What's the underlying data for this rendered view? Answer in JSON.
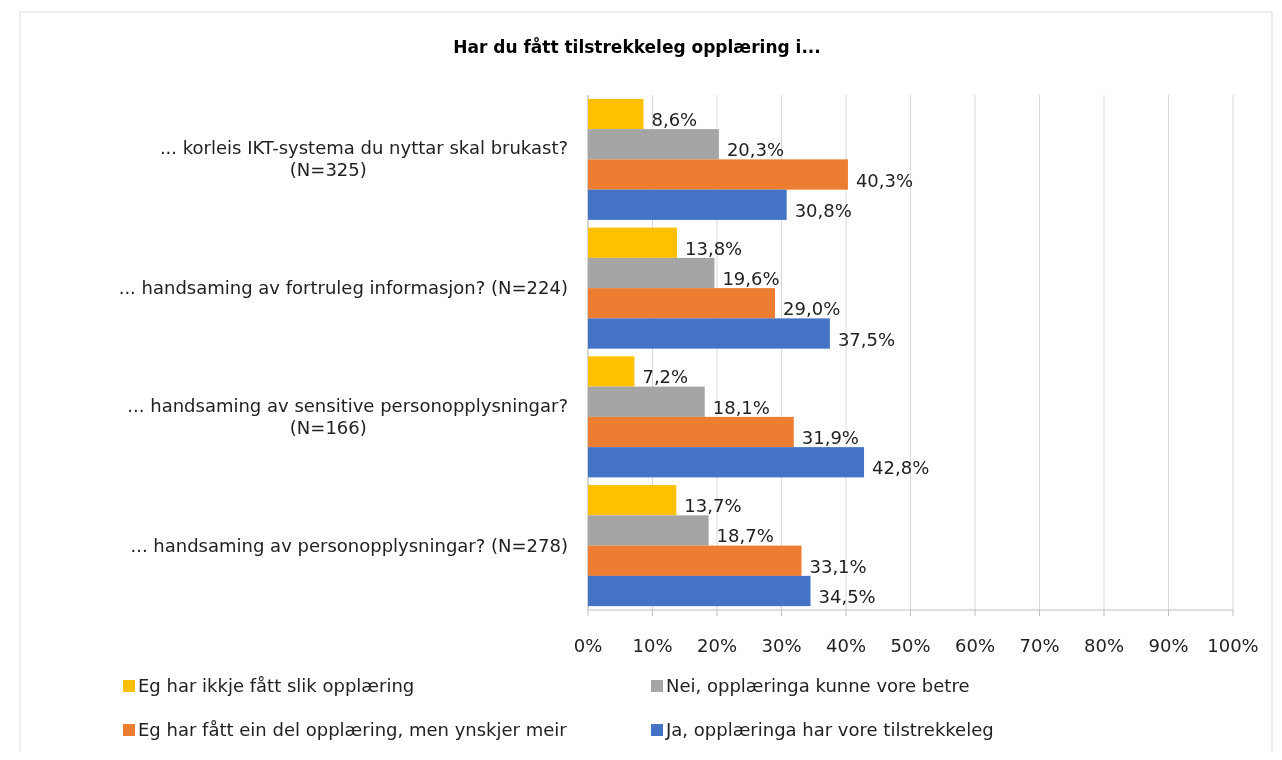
{
  "chart_data": {
    "type": "bar",
    "orientation": "horizontal",
    "title": "Har du fått tilstrekkeleg opplæring i...",
    "categories": [
      "... korleis IKT-systema du nyttar skal brukast? (N=325)",
      "... handsaming av fortruleg informasjon? (N=224)",
      "... handsaming av sensitive personopplysningar? (N=166)",
      "... handsaming av personopplysningar? (N=278)"
    ],
    "series": [
      {
        "name": "Eg har ikkje fått slik opplæring",
        "color": "#ffc000",
        "values": [
          8.6,
          13.8,
          7.2,
          13.7
        ],
        "value_labels": [
          "8,6%",
          "13,8%",
          "7,2%",
          "13,7%"
        ]
      },
      {
        "name": "Nei, opplæringa kunne vore betre",
        "color": "#a5a5a5",
        "values": [
          20.3,
          19.6,
          18.1,
          18.7
        ],
        "value_labels": [
          "20,3%",
          "19,6%",
          "18,1%",
          "18,7%"
        ]
      },
      {
        "name": "Eg har fått ein del opplæring, men ynskjer meir",
        "color": "#ed7d31",
        "values": [
          40.3,
          29.0,
          31.9,
          33.1
        ],
        "value_labels": [
          "40,3%",
          "29,0%",
          "31,9%",
          "33,1%"
        ]
      },
      {
        "name": "Ja, opplæringa har vore tilstrekkeleg",
        "color": "#4472c4",
        "values": [
          30.8,
          37.5,
          42.8,
          34.5
        ],
        "value_labels": [
          "30,8%",
          "37,5%",
          "42,8%",
          "34,5%"
        ]
      }
    ],
    "xlim": [
      0,
      100
    ],
    "xticks": [
      {
        "value": 0,
        "label": "0%"
      },
      {
        "value": 10,
        "label": "10%"
      },
      {
        "value": 20,
        "label": "20%"
      },
      {
        "value": 30,
        "label": "30%"
      },
      {
        "value": 40,
        "label": "40%"
      },
      {
        "value": 50,
        "label": "50%"
      },
      {
        "value": 60,
        "label": "60%"
      },
      {
        "value": 70,
        "label": "70%"
      },
      {
        "value": 80,
        "label": "80%"
      },
      {
        "value": 90,
        "label": "90%"
      },
      {
        "value": 100,
        "label": "100%"
      }
    ],
    "grid": "x",
    "legend": "bottom"
  }
}
